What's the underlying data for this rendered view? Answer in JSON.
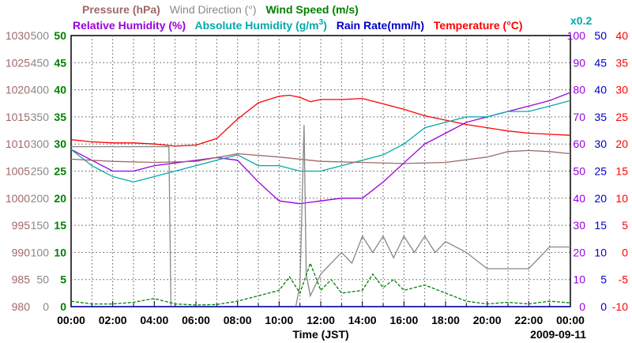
{
  "chart_data": {
    "type": "line",
    "date": "2009-09-11",
    "xlabel": "Time (JST)",
    "x_ticks": [
      "00:00",
      "02:00",
      "04:00",
      "06:00",
      "08:00",
      "10:00",
      "12:00",
      "14:00",
      "16:00",
      "18:00",
      "20:00",
      "22:00",
      "00:00"
    ],
    "grid": true,
    "legend_row1": [
      {
        "label": "Pressure (hPa)",
        "color": "#a06868"
      },
      {
        "label": "Wind Direction (°)",
        "color": "#888888"
      },
      {
        "label": "Wind Speed (m/s)",
        "color": "#008000"
      }
    ],
    "legend_row2": [
      {
        "label": "Relative Humidity (%)",
        "color": "#9900dd"
      },
      {
        "label": "Absolute Humidity (g/m",
        "sup": "3",
        "tail": ")",
        "color": "#00aaaa"
      },
      {
        "label": "Rain Rate(mm/h)",
        "color": "#0000cc"
      },
      {
        "label": "Temperature (°C)",
        "color": "#ff0000"
      }
    ],
    "scale_note": "x0.2",
    "axes": {
      "pressure": {
        "color": "#a06868",
        "ticks": [
          "1030",
          "1025",
          "1020",
          "1015",
          "1010",
          "1005",
          "1000",
          "995",
          "990",
          "985",
          "980"
        ],
        "range": [
          980,
          1030
        ]
      },
      "wind_direction": {
        "color": "#888888",
        "ticks": [
          "500",
          "450",
          "400",
          "350",
          "300",
          "250",
          "200",
          "150",
          "100",
          "50",
          "0"
        ],
        "range": [
          0,
          500
        ]
      },
      "wind_speed": {
        "color": "#008000",
        "ticks": [
          "50",
          "45",
          "40",
          "35",
          "30",
          "25",
          "20",
          "15",
          "10",
          "5",
          "0"
        ],
        "range": [
          0,
          50
        ]
      },
      "relative_humidity": {
        "color": "#9900dd",
        "ticks": [
          "100",
          "90",
          "80",
          "70",
          "60",
          "50",
          "40",
          "30",
          "20",
          "10",
          "0"
        ],
        "range": [
          0,
          100
        ]
      },
      "rain_rate": {
        "color": "#0000cc",
        "ticks": [
          "50",
          "45",
          "40",
          "35",
          "30",
          "25",
          "20",
          "15",
          "10",
          "5",
          "0"
        ],
        "range": [
          0,
          50
        ]
      },
      "temperature": {
        "color": "#ff0000",
        "ticks": [
          "40",
          "35",
          "30",
          "25",
          "20",
          "15",
          "10",
          "5",
          "0",
          "-5",
          "-10"
        ],
        "range": [
          -10,
          40
        ]
      }
    },
    "series": [
      {
        "name": "Temperature (°C)",
        "axis": "temperature",
        "color": "#ff0000",
        "x": [
          0,
          1,
          2,
          3,
          4,
          5,
          6,
          7,
          8,
          9,
          10,
          10.5,
          11,
          11.5,
          12,
          13,
          14,
          15,
          16,
          17,
          18,
          19,
          20,
          21,
          22,
          23,
          24
        ],
        "y": [
          20.8,
          20.4,
          20.2,
          20.2,
          20.0,
          19.6,
          19.8,
          21.0,
          24.6,
          27.6,
          28.8,
          29.0,
          28.6,
          27.8,
          28.2,
          28.2,
          28.4,
          27.4,
          26.4,
          25.2,
          24.4,
          23.6,
          23.0,
          22.4,
          22.0,
          21.8,
          21.6
        ]
      },
      {
        "name": "Relative Humidity (%)",
        "axis": "relative_humidity",
        "color": "#9900dd",
        "x": [
          0,
          1,
          2,
          3,
          4,
          5,
          6,
          7,
          8,
          9,
          10,
          11,
          12,
          13,
          14,
          15,
          16,
          17,
          18,
          19,
          20,
          21,
          22,
          23,
          24
        ],
        "y": [
          58,
          54,
          50,
          50,
          52,
          53,
          54,
          55,
          54,
          46,
          39,
          38,
          39,
          40,
          40,
          46,
          53,
          60,
          64,
          68,
          70,
          72,
          74,
          76,
          79
        ]
      },
      {
        "name": "Absolute Humidity (g/m3)",
        "axis": "wind_speed",
        "color": "#00aaaa",
        "x": [
          0,
          1,
          2,
          3,
          4,
          5,
          6,
          7,
          8,
          9,
          10,
          11,
          12,
          13,
          14,
          15,
          16,
          17,
          18,
          19,
          20,
          21,
          22,
          23,
          24
        ],
        "y": [
          29,
          26,
          24,
          23,
          24,
          25,
          26,
          27,
          28,
          26,
          26,
          25,
          25,
          26,
          27,
          28,
          30,
          33,
          34,
          35,
          35,
          36,
          36,
          37,
          38
        ]
      },
      {
        "name": "Pressure (hPa)",
        "axis": "pressure",
        "color": "#a06868",
        "x": [
          0,
          2,
          4,
          6,
          8,
          10,
          12,
          14,
          16,
          18,
          20,
          21,
          22,
          23,
          24
        ],
        "y": [
          1007.2,
          1006.8,
          1006.6,
          1006.8,
          1008.2,
          1007.6,
          1006.8,
          1006.6,
          1006.4,
          1006.6,
          1007.6,
          1008.6,
          1008.8,
          1008.6,
          1008.2
        ]
      },
      {
        "name": "Wind Direction (°)",
        "axis": "wind_direction",
        "color": "#888888",
        "step": true,
        "x": [
          0,
          4.7,
          4.8,
          10.8,
          11,
          11.2,
          11.3,
          11.5,
          12,
          13,
          13.5,
          14,
          14.5,
          15,
          15.5,
          16,
          16.5,
          17,
          17.5,
          18,
          19,
          20,
          22,
          23,
          24
        ],
        "y": [
          295,
          295,
          0,
          0,
          40,
          335,
          60,
          20,
          60,
          100,
          80,
          130,
          100,
          130,
          90,
          130,
          100,
          130,
          100,
          120,
          100,
          70,
          70,
          110,
          110
        ]
      },
      {
        "name": "Wind Speed (m/s)",
        "axis": "wind_speed",
        "color": "#008000",
        "x": [
          0,
          1,
          2,
          3,
          4,
          5,
          6,
          7,
          8,
          9,
          10,
          10.5,
          11,
          11.5,
          12,
          12.5,
          13,
          14,
          14.5,
          15,
          15.5,
          16,
          17,
          18,
          19,
          20,
          21,
          22,
          23,
          24
        ],
        "y": [
          1,
          0.5,
          0.5,
          0.8,
          1.5,
          0.5,
          0.3,
          0.4,
          1.0,
          2.0,
          3.0,
          5.5,
          2.5,
          8.0,
          3.0,
          5.0,
          2.5,
          3.0,
          6.0,
          3.5,
          5.0,
          3.0,
          4.0,
          2.5,
          1.0,
          0.5,
          0.8,
          0.5,
          1.0,
          0.7
        ]
      },
      {
        "name": "Rain Rate(mm/h)",
        "axis": "rain_rate",
        "color": "#0000cc",
        "x": [
          0,
          24
        ],
        "y": [
          0,
          0
        ]
      }
    ]
  }
}
